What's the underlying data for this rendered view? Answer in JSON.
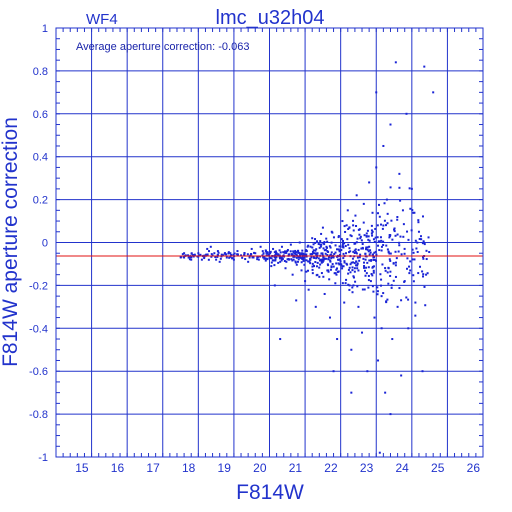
{
  "header": {
    "chip": "WF4",
    "title": "lmc_u32h04"
  },
  "annotation": "Average aperture correction: -0.063",
  "chart_data": {
    "type": "scatter",
    "xlabel": "F814W",
    "ylabel": "F814W aperture correction",
    "xlim": [
      14,
      26
    ],
    "ylim": [
      -1,
      1
    ],
    "xticks": [
      "15",
      "16",
      "17",
      "18",
      "19",
      "20",
      "21",
      "22",
      "23",
      "24",
      "25",
      "26"
    ],
    "yticks": [
      "1",
      "0.8",
      "0.6",
      "0.4",
      "0.2",
      "0",
      "-0.2",
      "-0.4",
      "-0.6",
      "-0.8",
      "-1"
    ],
    "grid": true,
    "reference_line": {
      "y": -0.063
    },
    "colors": {
      "axes": "#2233cc",
      "points": "#1a24d6",
      "reference": "#e01010"
    },
    "points_summary": "about 700 dots, clustered near -0.063, with spread increasing from x≈17.5 to x≈24.5",
    "points": [
      [
        17.6,
        -0.07
      ],
      [
        17.8,
        -0.08
      ],
      [
        17.9,
        -0.06
      ],
      [
        18.0,
        -0.05
      ],
      [
        18.1,
        -0.08
      ],
      [
        18.2,
        -0.06
      ],
      [
        18.25,
        -0.03
      ],
      [
        18.3,
        -0.04
      ],
      [
        18.35,
        -0.02
      ],
      [
        18.4,
        -0.06
      ],
      [
        18.45,
        -0.05
      ],
      [
        18.5,
        -0.08
      ],
      [
        18.55,
        -0.04
      ],
      [
        18.6,
        -0.09
      ],
      [
        18.7,
        -0.06
      ],
      [
        18.8,
        -0.07
      ],
      [
        18.9,
        -0.05
      ],
      [
        19.0,
        -0.08
      ],
      [
        19.1,
        -0.04
      ],
      [
        19.2,
        -0.06
      ],
      [
        19.3,
        -0.05
      ],
      [
        19.4,
        -0.09
      ],
      [
        19.5,
        -0.03
      ],
      [
        19.55,
        -0.07
      ],
      [
        19.6,
        -0.05
      ],
      [
        19.7,
        -0.08
      ],
      [
        19.75,
        -0.02
      ],
      [
        19.8,
        -0.06
      ],
      [
        19.9,
        -0.04
      ],
      [
        20.0,
        -0.07
      ],
      [
        20.05,
        -0.11
      ],
      [
        20.1,
        -0.03
      ],
      [
        20.15,
        -0.2
      ],
      [
        20.2,
        -0.05
      ],
      [
        20.3,
        -0.09
      ],
      [
        20.35,
        -0.02
      ],
      [
        20.4,
        -0.06
      ],
      [
        20.45,
        -0.12
      ],
      [
        20.5,
        -0.04
      ],
      [
        20.55,
        -0.08
      ],
      [
        20.6,
        -0.01
      ],
      [
        20.65,
        -0.15
      ],
      [
        20.7,
        -0.05
      ],
      [
        20.75,
        -0.27
      ],
      [
        20.8,
        -0.09
      ],
      [
        20.85,
        0.0
      ],
      [
        20.9,
        -0.13
      ],
      [
        20.95,
        -0.06
      ],
      [
        21.0,
        -0.18
      ],
      [
        21.05,
        -0.04
      ],
      [
        21.1,
        -0.22
      ],
      [
        21.15,
        -0.08
      ],
      [
        21.2,
        0.02
      ],
      [
        21.25,
        -0.11
      ],
      [
        21.3,
        -0.3
      ],
      [
        21.35,
        -0.05
      ],
      [
        21.4,
        -0.16
      ],
      [
        21.45,
        0.04
      ],
      [
        21.5,
        -0.09
      ],
      [
        21.55,
        -0.24
      ],
      [
        21.6,
        -0.02
      ],
      [
        21.65,
        -0.13
      ],
      [
        21.7,
        -0.35
      ],
      [
        21.75,
        0.05
      ],
      [
        21.8,
        -0.07
      ],
      [
        21.85,
        -0.19
      ],
      [
        21.9,
        -0.45
      ],
      [
        21.95,
        0.03
      ],
      [
        22.0,
        -0.1
      ],
      [
        22.05,
        0.1
      ],
      [
        22.1,
        -0.28
      ],
      [
        22.15,
        -0.05
      ],
      [
        22.2,
        0.15
      ],
      [
        22.25,
        -0.2
      ],
      [
        22.3,
        -0.5
      ],
      [
        22.35,
        0.08
      ],
      [
        22.4,
        -0.12
      ],
      [
        22.45,
        0.22
      ],
      [
        22.5,
        -0.3
      ],
      [
        22.55,
        0.02
      ],
      [
        22.6,
        -0.42
      ],
      [
        22.65,
        0.18
      ],
      [
        22.7,
        -0.08
      ],
      [
        22.75,
        -0.6
      ],
      [
        22.8,
        0.28
      ],
      [
        22.85,
        -0.18
      ],
      [
        22.9,
        0.05
      ],
      [
        22.95,
        -0.35
      ],
      [
        23.0,
        0.35
      ],
      [
        23.05,
        -0.55
      ],
      [
        23.1,
        0.12
      ],
      [
        23.15,
        -0.25
      ],
      [
        23.2,
        0.45
      ],
      [
        23.25,
        -0.7
      ],
      [
        23.3,
        0.2
      ],
      [
        23.35,
        -0.12
      ],
      [
        23.4,
        0.55
      ],
      [
        23.45,
        -0.45
      ],
      [
        23.5,
        0.06
      ],
      [
        23.55,
        0.84
      ],
      [
        23.6,
        -0.3
      ],
      [
        23.65,
        0.32
      ],
      [
        23.7,
        -0.62
      ],
      [
        23.75,
        0.15
      ],
      [
        23.8,
        -0.18
      ],
      [
        23.85,
        0.6
      ],
      [
        23.9,
        -0.4
      ],
      [
        24.0,
        0.25
      ],
      [
        24.1,
        -0.28
      ],
      [
        24.2,
        0.05
      ],
      [
        24.3,
        -0.6
      ],
      [
        24.35,
        0.82
      ],
      [
        24.4,
        -0.15
      ],
      [
        24.6,
        0.7
      ],
      [
        23.0,
        0.7
      ],
      [
        22.3,
        -0.7
      ],
      [
        23.4,
        -0.8
      ],
      [
        23.1,
        -0.98
      ],
      [
        21.8,
        -0.6
      ],
      [
        20.3,
        -0.45
      ]
    ]
  }
}
